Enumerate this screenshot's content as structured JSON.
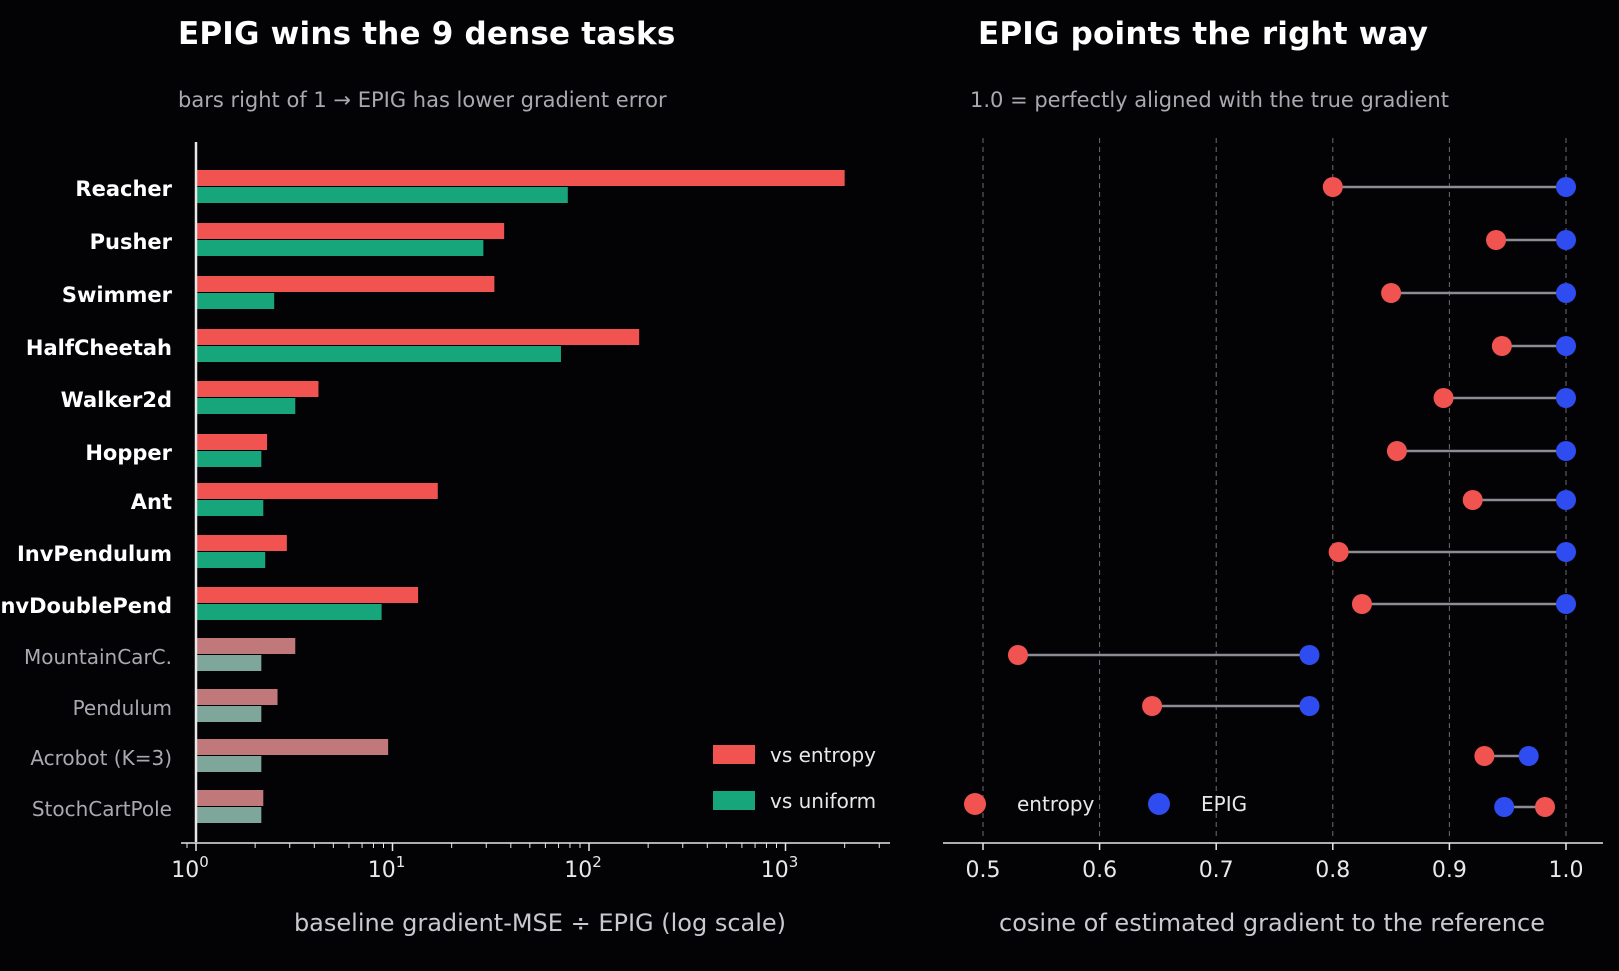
{
  "colors": {
    "background": "#030306",
    "entropy": "#f05350",
    "uniform": "#17a67b",
    "entropy_muted": "#c0787a",
    "uniform_muted": "#7ea69a",
    "epig_dot": "#2e4cf0",
    "connector": "#8c8c92",
    "axis": "#e8e8ea"
  },
  "chart_data": [
    {
      "type": "bar",
      "title": "EPIG wins the 9 dense tasks",
      "subtitle": "bars right of 1  →  EPIG has lower gradient error",
      "xlabel": "baseline gradient-MSE  ÷  EPIG  (log scale)",
      "xscale": "log",
      "xlim": [
        0.9,
        4000
      ],
      "xticks": [
        {
          "value": 1,
          "base": "10",
          "exp": "0"
        },
        {
          "value": 10,
          "base": "10",
          "exp": "1"
        },
        {
          "value": 100,
          "base": "10",
          "exp": "2"
        },
        {
          "value": 1000,
          "base": "10",
          "exp": "3"
        }
      ],
      "categories": [
        "Reacher",
        "Pusher",
        "Swimmer",
        "HalfCheetah",
        "Walker2d",
        "Hopper",
        "Ant",
        "InvPendulum",
        "InvDoublePend",
        "MountainCarC.",
        "Pendulum",
        "Acrobot (K=3)",
        "StochCartPole"
      ],
      "dense": [
        true,
        true,
        true,
        true,
        true,
        true,
        true,
        true,
        true,
        false,
        false,
        false,
        false
      ],
      "series": [
        {
          "name": "vs entropy",
          "values": [
            2000,
            37,
            33,
            180,
            4.2,
            2.3,
            17,
            2.9,
            13.5,
            3.2,
            2.6,
            9.5,
            2.2
          ]
        },
        {
          "name": "vs uniform",
          "values": [
            78,
            29,
            2.5,
            72,
            3.2,
            2.15,
            2.2,
            2.25,
            8.8,
            2.15,
            2.15,
            2.15,
            2.15
          ]
        }
      ],
      "legend": {
        "placement": "bottom-right"
      }
    },
    {
      "type": "scatter",
      "title": "EPIG points the right way",
      "subtitle": "1.0 = perfectly aligned with the true gradient",
      "xlabel": "cosine of estimated gradient to the reference",
      "xlim": [
        0.465,
        1.03
      ],
      "xticks": [
        "0.5",
        "0.6",
        "0.7",
        "0.8",
        "0.9",
        "1.0"
      ],
      "categories": [
        "Reacher",
        "Pusher",
        "Swimmer",
        "HalfCheetah",
        "Walker2d",
        "Hopper",
        "Ant",
        "InvPendulum",
        "InvDoublePend",
        "MountainCarC.",
        "Pendulum",
        "Acrobot (K=3)",
        "StochCartPole"
      ],
      "series": [
        {
          "name": "entropy",
          "values": [
            0.8,
            0.94,
            0.85,
            0.945,
            0.895,
            0.855,
            0.92,
            0.805,
            0.825,
            0.53,
            0.645,
            0.93,
            0.982
          ]
        },
        {
          "name": "EPIG",
          "values": [
            1.0,
            1.0,
            1.0,
            1.0,
            1.0,
            1.0,
            1.0,
            1.0,
            1.0,
            0.78,
            0.78,
            0.968,
            0.947
          ]
        }
      ],
      "grid": "vertical dashed",
      "legend": {
        "placement": "bottom-left"
      }
    }
  ]
}
